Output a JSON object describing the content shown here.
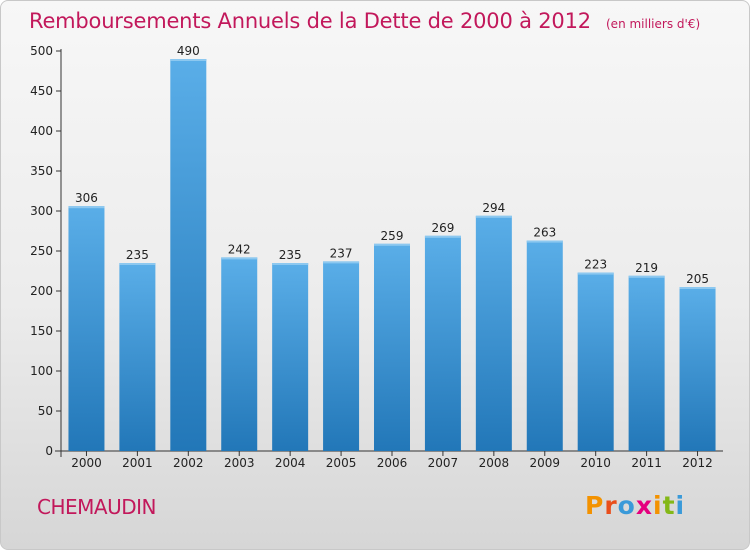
{
  "header": {
    "title": "Remboursements Annuels de la Dette de 2000 à 2012",
    "unit": "(en milliers d'€)"
  },
  "footer": {
    "city": "CHEMAUDIN",
    "logo_text": "Proxiti",
    "logo_colors": [
      "#f39200",
      "#e94e1b",
      "#3a9ad9",
      "#e5007e",
      "#f39200",
      "#84b818",
      "#3a9ad9"
    ]
  },
  "colors": {
    "bar_top": "#5aaee8",
    "bar_bottom": "#2277b8",
    "title": "#c2185b"
  },
  "chart_data": {
    "type": "bar",
    "categories": [
      "2000",
      "2001",
      "2002",
      "2003",
      "2004",
      "2005",
      "2006",
      "2007",
      "2008",
      "2009",
      "2010",
      "2011",
      "2012"
    ],
    "values": [
      306,
      235,
      490,
      242,
      235,
      237,
      259,
      269,
      294,
      263,
      223,
      219,
      205
    ],
    "ylim": [
      0,
      500
    ],
    "yticks": [
      0,
      50,
      100,
      150,
      200,
      250,
      300,
      350,
      400,
      450,
      500
    ],
    "grid": false,
    "data_labels": true
  }
}
